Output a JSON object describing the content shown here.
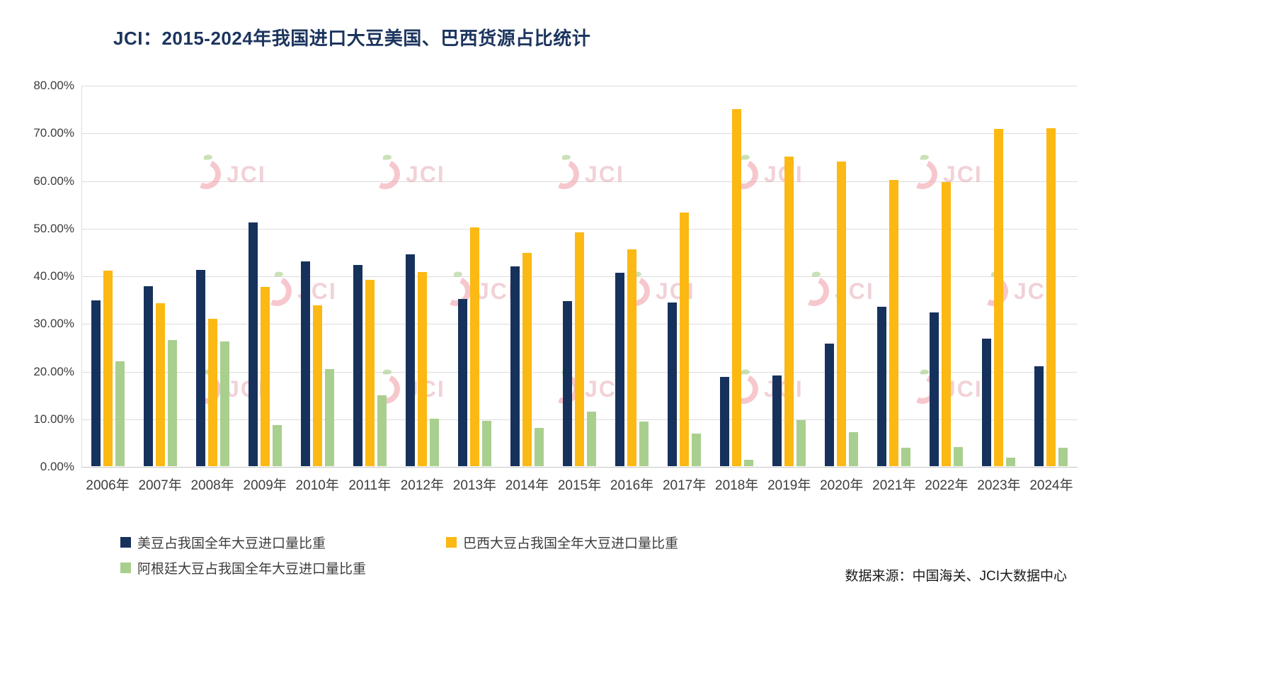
{
  "title": "JCI：2015-2024年我国进口大豆美国、巴西货源占比统计",
  "watermark_text": "JCI",
  "source": "数据来源：中国海关、JCI大数据中心",
  "chart_data": {
    "type": "bar",
    "title": "JCI：2015-2024年我国进口大豆美国、巴西货源占比统计",
    "categories": [
      "2006年",
      "2007年",
      "2008年",
      "2009年",
      "2010年",
      "2011年",
      "2012年",
      "2013年",
      "2014年",
      "2015年",
      "2016年",
      "2017年",
      "2018年",
      "2019年",
      "2020年",
      "2021年",
      "2022年",
      "2023年",
      "2024年"
    ],
    "series": [
      {
        "name": "美豆占我国全年大豆进口量比重",
        "color": "#16325C",
        "values": [
          34.8,
          37.7,
          41.2,
          51.1,
          43.0,
          42.3,
          44.4,
          35.1,
          42.0,
          34.7,
          40.6,
          34.3,
          18.8,
          19.0,
          25.7,
          33.4,
          32.3,
          26.8,
          21.0
        ]
      },
      {
        "name": "巴西大豆占我国全年大豆进口量比重",
        "color": "#FCB813",
        "values": [
          41.0,
          34.2,
          31.0,
          37.6,
          33.8,
          39.1,
          40.7,
          50.1,
          44.7,
          49.0,
          45.5,
          53.3,
          75.0,
          65.0,
          64.0,
          60.1,
          59.6,
          70.8,
          70.9
        ]
      },
      {
        "name": "阿根廷大豆占我国全年大豆进口量比重",
        "color": "#A9CF8E",
        "values": [
          22.0,
          26.5,
          26.2,
          8.7,
          20.3,
          14.9,
          10.0,
          9.5,
          8.1,
          11.4,
          9.4,
          6.8,
          1.4,
          9.7,
          7.2,
          3.8,
          4.0,
          1.8,
          3.9
        ]
      }
    ],
    "ylim": [
      0,
      80
    ],
    "ytick_labels": [
      "0.00%",
      "10.00%",
      "20.00%",
      "30.00%",
      "40.00%",
      "50.00%",
      "60.00%",
      "70.00%",
      "80.00%"
    ],
    "grid": "horizontal",
    "legend_position": "bottom-left"
  }
}
